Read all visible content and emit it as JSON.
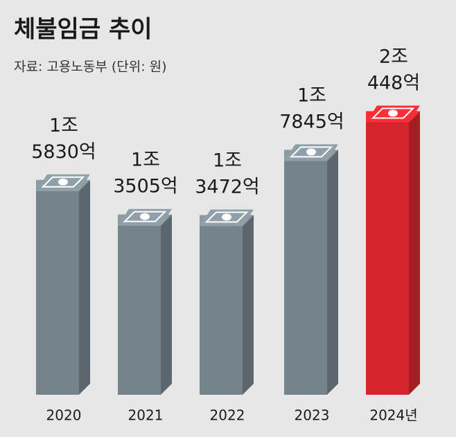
{
  "chart_data": {
    "type": "bar",
    "title": "체불임금 추이",
    "subtitle": "자료: 고용노동부 (단위: 원)",
    "categories": [
      "2020",
      "2021",
      "2022",
      "2023",
      "2024년"
    ],
    "values": [
      15830,
      13505,
      13472,
      17845,
      20448
    ],
    "value_labels": [
      "1조\n5830억",
      "1조\n3505억",
      "1조\n3472억",
      "1조\n7845억",
      "2조\n448억"
    ],
    "colors": [
      "#76838a",
      "#76838a",
      "#76838a",
      "#76838a",
      "#d4252c"
    ],
    "ylim": [
      1400,
      21400
    ]
  }
}
